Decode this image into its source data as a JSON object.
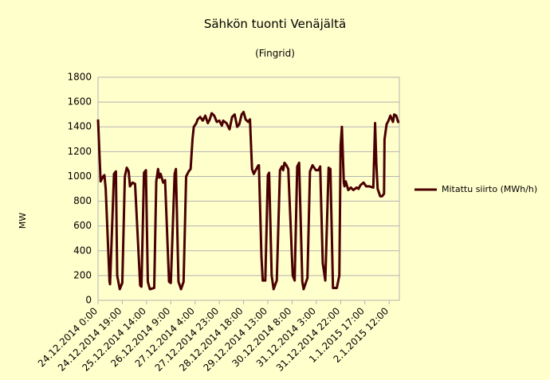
{
  "chart_data": {
    "type": "line",
    "title": "Sähkön tuonti Venäjältä",
    "subtitle": "(Fingrid)",
    "y_label": "MW",
    "x": [
      0,
      2,
      4,
      5,
      6,
      9,
      9.4,
      12.5,
      14,
      15,
      17,
      19,
      21,
      22.5,
      24,
      25,
      27,
      29,
      33,
      34,
      36,
      37.5,
      39,
      40.6,
      44,
      45.6,
      47,
      48,
      49,
      51,
      52.5,
      55.6,
      57,
      60,
      61,
      63,
      65,
      67,
      69,
      71,
      72.5,
      74,
      75,
      77,
      78,
      80,
      82,
      84,
      86,
      87.5,
      89,
      91,
      93,
      95,
      97,
      98,
      100.6,
      103,
      105,
      107,
      109,
      110.6,
      112.5,
      114,
      115.6,
      117.5,
      119,
      120.6,
      122,
      124,
      125.6,
      126,
      128,
      129,
      131,
      133,
      134,
      136,
      137.5,
      140,
      142.5,
      144,
      145,
      146,
      147.5,
      149,
      152.5,
      154,
      156,
      157.5,
      160,
      161,
      164,
      166,
      168,
      170.6,
      172.5,
      174,
      176,
      178,
      180.6,
      182,
      184,
      187,
      189,
      190,
      191,
      192.5,
      193,
      194,
      196,
      198,
      200,
      202.5,
      204,
      205.6,
      208,
      210,
      212.5,
      215.6,
      217,
      218,
      219,
      221,
      222.5,
      224,
      224.4,
      226,
      227.5,
      229,
      231,
      232,
      233.6,
      235,
      236
    ],
    "series": [
      {
        "name": "Mitattu siirto (MWh/h)",
        "color": "#4a0000",
        "values": [
          1460,
          960,
          1000,
          1010,
          900,
          150,
          130,
          1020,
          1040,
          200,
          90,
          140,
          1000,
          1070,
          1040,
          920,
          950,
          940,
          120,
          110,
          1030,
          1050,
          150,
          90,
          100,
          960,
          1060,
          990,
          1020,
          950,
          970,
          150,
          140,
          1020,
          1060,
          150,
          90,
          150,
          1000,
          1040,
          1060,
          1300,
          1400,
          1430,
          1460,
          1480,
          1450,
          1490,
          1430,
          1460,
          1510,
          1490,
          1440,
          1450,
          1410,
          1450,
          1430,
          1380,
          1480,
          1500,
          1400,
          1420,
          1500,
          1520,
          1460,
          1440,
          1460,
          1060,
          1020,
          1060,
          1090,
          1090,
          350,
          160,
          160,
          1010,
          1030,
          200,
          90,
          160,
          1050,
          1080,
          1050,
          1110,
          1090,
          1060,
          200,
          160,
          1080,
          1110,
          150,
          90,
          180,
          1040,
          1090,
          1050,
          1050,
          1080,
          300,
          160,
          1070,
          1060,
          100,
          100,
          200,
          1250,
          1400,
          950,
          920,
          960,
          890,
          910,
          890,
          910,
          900,
          930,
          950,
          920,
          920,
          910,
          1430,
          1100,
          900,
          840,
          840,
          860,
          1300,
          1420,
          1450,
          1490,
          1440,
          1500,
          1490,
          1440,
          1440
        ]
      }
    ],
    "xlim": [
      0,
      236
    ],
    "xticks": [
      {
        "value": 0,
        "label": "24.12.2014 0:00"
      },
      {
        "value": 19,
        "label": "24.12.2014 19:00"
      },
      {
        "value": 38,
        "label": "25.12.2014 14:00"
      },
      {
        "value": 57,
        "label": "26.12.2014 9:00"
      },
      {
        "value": 76,
        "label": "27.12.2014 4:00"
      },
      {
        "value": 95,
        "label": "27.12.2014 23:00"
      },
      {
        "value": 114,
        "label": "28.12.2014 18:00"
      },
      {
        "value": 133,
        "label": "29.12.2014 13:00"
      },
      {
        "value": 152,
        "label": "30.12.2014 8:00"
      },
      {
        "value": 171,
        "label": "31.12.2014 3:00"
      },
      {
        "value": 190,
        "label": "31.12.2014 22:00"
      },
      {
        "value": 209,
        "label": "1.1.2015 17:00"
      },
      {
        "value": 228,
        "label": "2.1.2015 12:00"
      }
    ],
    "ylim": [
      0,
      1800
    ],
    "yticks": [
      0,
      200,
      400,
      600,
      800,
      1000,
      1200,
      1400,
      1600,
      1800
    ],
    "grid": true,
    "legend": "right"
  }
}
